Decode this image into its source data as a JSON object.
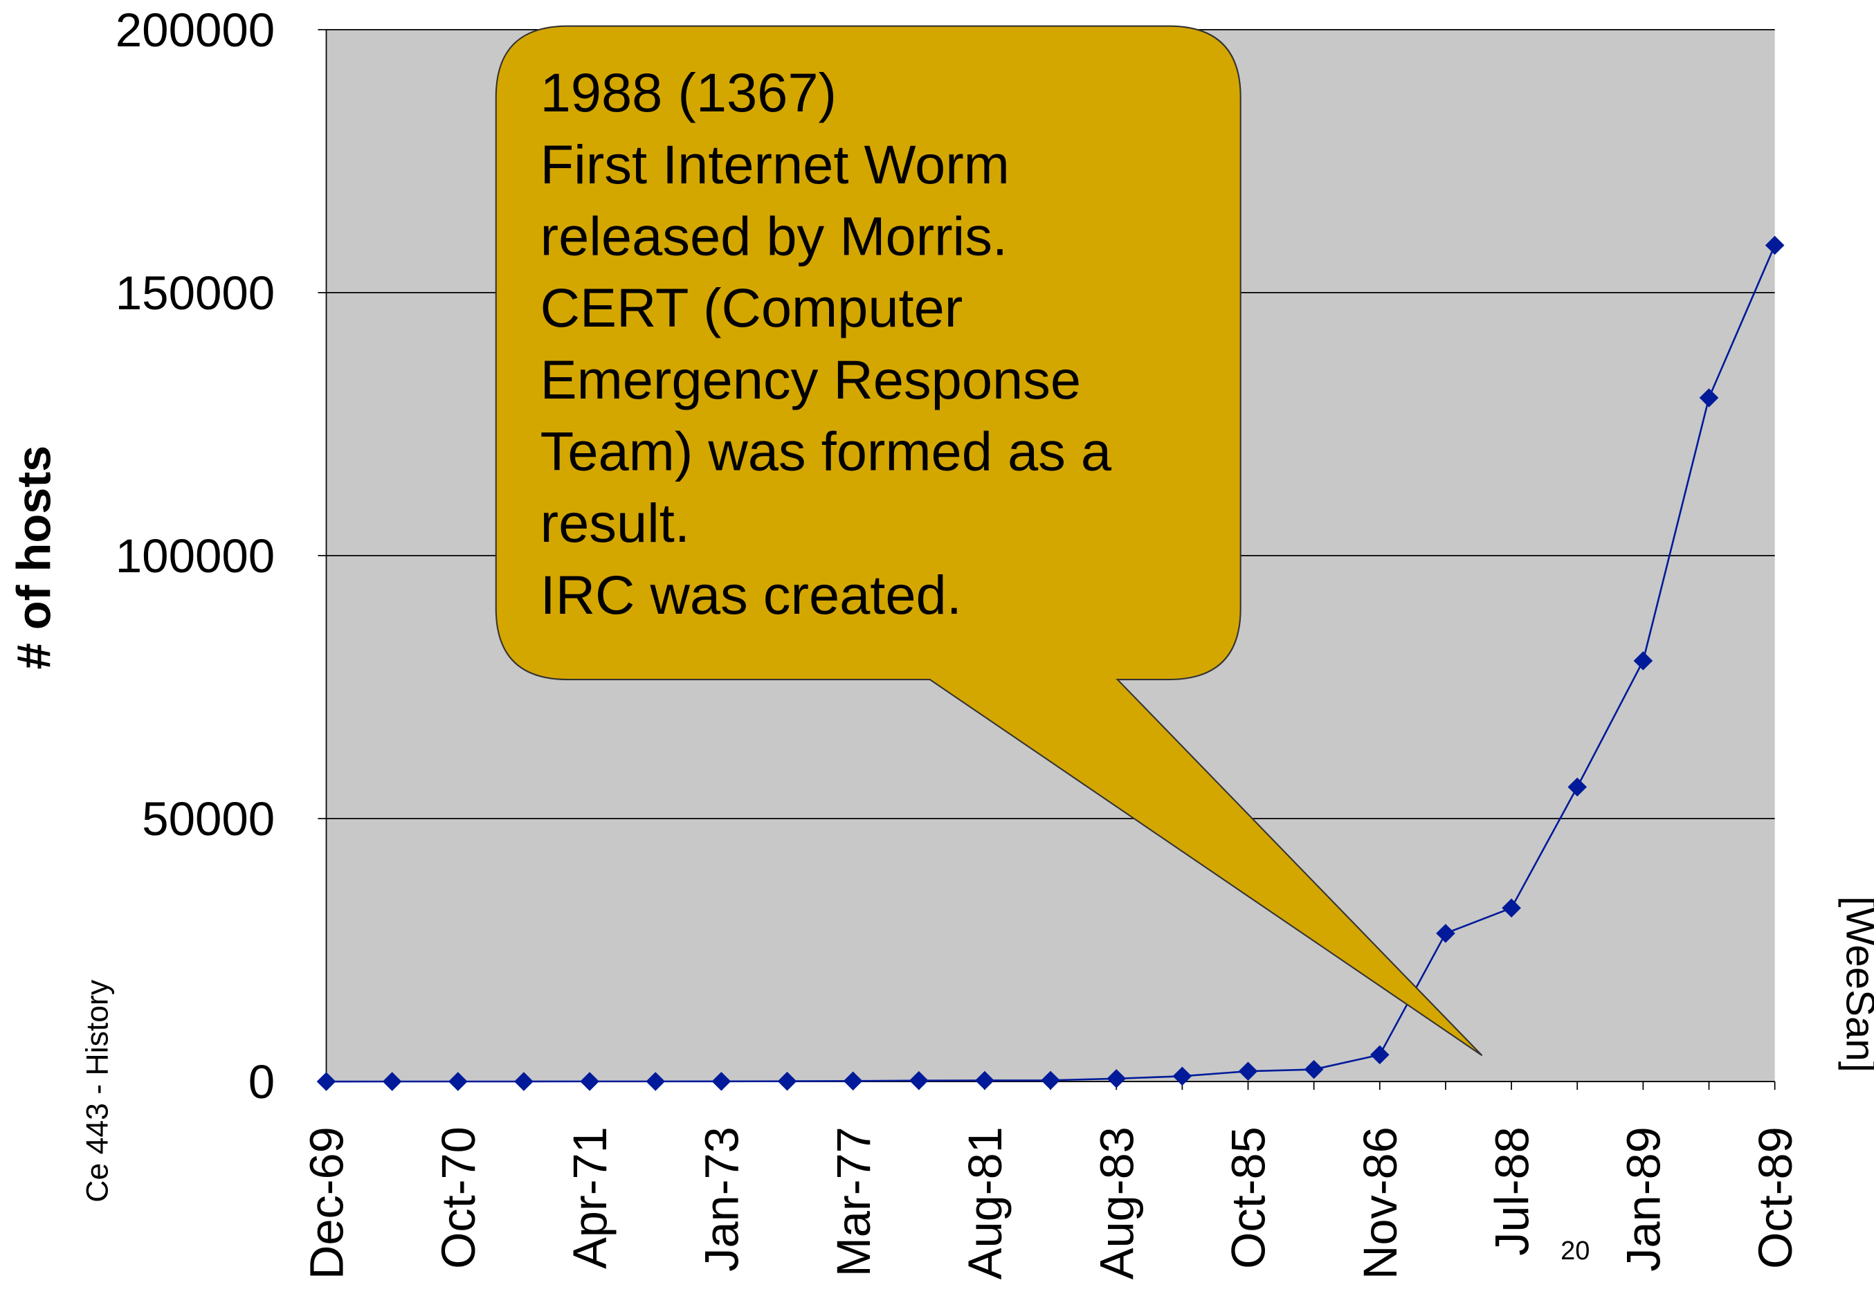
{
  "chart_data": {
    "type": "line",
    "y_label": "# of hosts",
    "categories": [
      "Dec-69",
      null,
      "Oct-70",
      null,
      "Apr-71",
      null,
      "Jan-73",
      null,
      "Mar-77",
      null,
      "Aug-81",
      null,
      "Aug-83",
      null,
      "Oct-85",
      null,
      "Nov-86",
      null,
      "Jul-88",
      null,
      "Jan-89",
      null,
      "Oct-89"
    ],
    "series": [
      {
        "name": "hosts",
        "color": "#001a99",
        "values": [
          4,
          9,
          11,
          13,
          23,
          23,
          35,
          62,
          111,
          188,
          213,
          235,
          562,
          1024,
          1961,
          2308,
          5089,
          28174,
          33000,
          56000,
          80000,
          130000,
          159000
        ]
      }
    ],
    "ylim": [
      0,
      200000
    ],
    "yticks": [
      0,
      50000,
      100000,
      150000,
      200000
    ],
    "grid": true,
    "plot_background": "#c8c8c8",
    "annotation": {
      "color": "#d4a600",
      "lines": [
        "1988 (1367)",
        "First Internet Worm",
        "released by Morris.",
        "CERT (Computer",
        "Emergency Response",
        "Team) was formed as a",
        "result.",
        "IRC was created."
      ]
    }
  },
  "footer": "Ce 443 - History",
  "page_number": "20",
  "source": "[WeeSan]"
}
